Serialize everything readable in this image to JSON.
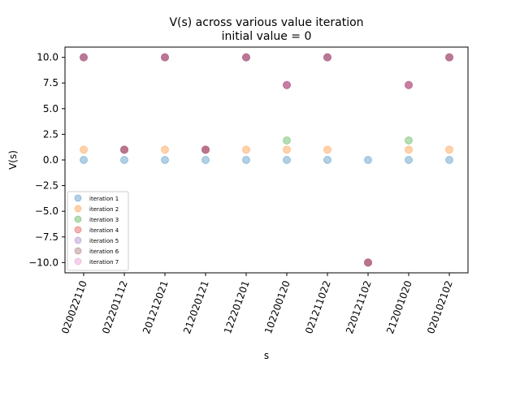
{
  "chart_data": {
    "type": "scatter",
    "title": "V(s) across various value iteration",
    "subtitle": "initial value = 0",
    "xlabel": "s",
    "ylabel": "V(s)",
    "categories": [
      "020022110",
      "022201112",
      "201212021",
      "212020121",
      "122201201",
      "102200120",
      "021211022",
      "220121102",
      "212001020",
      "020102102"
    ],
    "ylim": [
      -11.0,
      11.0
    ],
    "yticks": [
      10.0,
      7.5,
      5.0,
      2.5,
      0.0,
      -2.5,
      -5.0,
      -7.5,
      -10.0
    ],
    "ytick_labels": [
      "10.0",
      "7.5",
      "5.0",
      "2.5",
      "0.0",
      "−2.5",
      "−5.0",
      "−7.5",
      "−10.0"
    ],
    "grid": false,
    "legend_position": "lower-left",
    "point_alpha": 0.35,
    "series": [
      {
        "name": "iteration 1",
        "color": "#1f77b4",
        "values": [
          0,
          0,
          0,
          0,
          0,
          0,
          0,
          0,
          0,
          0
        ]
      },
      {
        "name": "iteration 2",
        "color": "#ff7f0e",
        "values": [
          1,
          1,
          1,
          1,
          1,
          1,
          1,
          -10,
          1,
          1
        ]
      },
      {
        "name": "iteration 3",
        "color": "#2ca02c",
        "values": [
          10,
          1,
          10,
          1,
          10,
          1.9,
          10,
          -10,
          1.9,
          10
        ]
      },
      {
        "name": "iteration 4",
        "color": "#d62728",
        "values": [
          10,
          1,
          10,
          1,
          10,
          7.3,
          10,
          -10,
          7.3,
          10
        ]
      },
      {
        "name": "iteration 5",
        "color": "#9467bd",
        "values": [
          10,
          1,
          10,
          1,
          10,
          7.3,
          10,
          -10,
          7.3,
          10
        ]
      },
      {
        "name": "iteration 6",
        "color": "#8c564b",
        "values": [
          10,
          1,
          10,
          1,
          10,
          7.3,
          10,
          -10,
          7.3,
          10
        ]
      },
      {
        "name": "iteration 7",
        "color": "#e377c2",
        "values": [
          10,
          1,
          10,
          1,
          10,
          7.3,
          10,
          -10,
          7.3,
          10
        ]
      }
    ]
  }
}
